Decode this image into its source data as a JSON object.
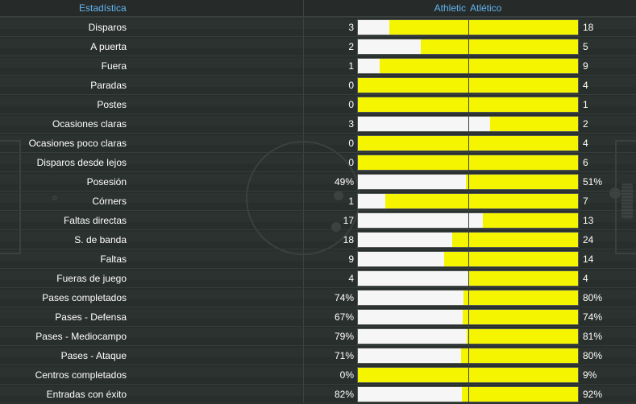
{
  "header": {
    "stat_label": "Estadística",
    "home_team": "Athletic",
    "away_team": "Atlético"
  },
  "colors": {
    "home_bar": "#f6f6f6",
    "away_bar": "#f5f500",
    "header_text": "#63b4f0"
  },
  "stats": [
    {
      "label": "Disparos",
      "home": "3",
      "away": "18",
      "home_share": 0.143
    },
    {
      "label": "A puerta",
      "home": "2",
      "away": "5",
      "home_share": 0.286
    },
    {
      "label": "Fuera",
      "home": "1",
      "away": "9",
      "home_share": 0.1
    },
    {
      "label": "Paradas",
      "home": "0",
      "away": "4",
      "home_share": 0
    },
    {
      "label": "Postes",
      "home": "0",
      "away": "1",
      "home_share": 0
    },
    {
      "label": "Ocasiones claras",
      "home": "3",
      "away": "2",
      "home_share": 0.6
    },
    {
      "label": "Ocasiones poco claras",
      "home": "0",
      "away": "4",
      "home_share": 0
    },
    {
      "label": "Disparos desde lejos",
      "home": "0",
      "away": "6",
      "home_share": 0
    },
    {
      "label": "Posesión",
      "home": "49%",
      "away": "51%",
      "home_share": 0.49
    },
    {
      "label": "Córners",
      "home": "1",
      "away": "7",
      "home_share": 0.125
    },
    {
      "label": "Faltas directas",
      "home": "17",
      "away": "13",
      "home_share": 0.567
    },
    {
      "label": "S. de banda",
      "home": "18",
      "away": "24",
      "home_share": 0.429
    },
    {
      "label": "Faltas",
      "home": "9",
      "away": "14",
      "home_share": 0.391
    },
    {
      "label": "Fueras de juego",
      "home": "4",
      "away": "4",
      "home_share": 0.5
    },
    {
      "label": "Pases completados",
      "home": "74%",
      "away": "80%",
      "home_share": 0.48
    },
    {
      "label": "Pases - Defensa",
      "home": "67%",
      "away": "74%",
      "home_share": 0.475
    },
    {
      "label": "Pases - Mediocampo",
      "home": "79%",
      "away": "81%",
      "home_share": 0.494
    },
    {
      "label": "Pases - Ataque",
      "home": "71%",
      "away": "80%",
      "home_share": 0.47
    },
    {
      "label": "Centros completados",
      "home": "0%",
      "away": "9%",
      "home_share": 0
    },
    {
      "label": "Entradas con éxito",
      "home": "82%",
      "away": "92%",
      "home_share": 0.471
    }
  ]
}
